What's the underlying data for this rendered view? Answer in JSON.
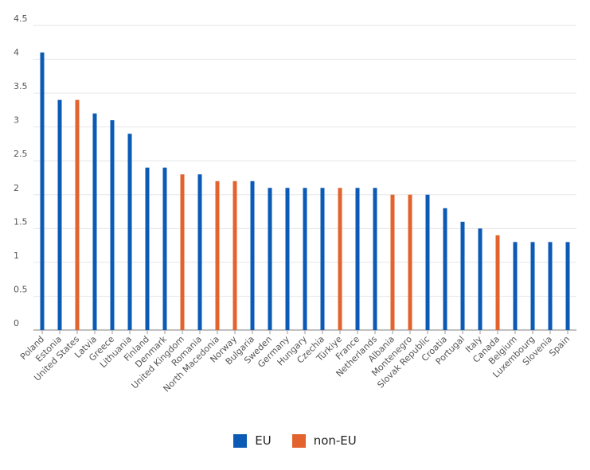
{
  "chart_data": {
    "type": "bar",
    "title": "",
    "xlabel": "",
    "ylabel": "",
    "ylim": [
      0,
      4.5
    ],
    "yticks": [
      "0",
      "0.5",
      "1",
      "1.5",
      "2",
      "2.5",
      "3",
      "3.5",
      "4",
      "4.5"
    ],
    "grid": true,
    "legend_position": "bottom",
    "colors": {
      "EU": "#0b5ab5",
      "non-EU": "#e2632e"
    },
    "series": [
      {
        "name": "EU"
      },
      {
        "name": "non-EU"
      }
    ],
    "categories": [
      "Poland",
      "Estonia",
      "United States",
      "Latvia",
      "Greece",
      "Lithuania",
      "Finland",
      "Denmark",
      "United Kingdom",
      "Romania",
      "North Macedonia",
      "Norway",
      "Bulgaria",
      "Sweden",
      "Germany",
      "Hungary",
      "Czechia",
      "Türkiye",
      "France",
      "Netherlands",
      "Albania",
      "Montenegro",
      "Slovak Republic",
      "Croatia",
      "Portugal",
      "Italy",
      "Canada",
      "Belgium",
      "Luxembourg",
      "Slovenia",
      "Spain"
    ],
    "values": [
      4.1,
      3.4,
      3.4,
      3.2,
      3.1,
      2.9,
      2.4,
      2.4,
      2.3,
      2.3,
      2.2,
      2.2,
      2.2,
      2.1,
      2.1,
      2.1,
      2.1,
      2.1,
      2.1,
      2.1,
      2.0,
      2.0,
      2.0,
      1.8,
      1.6,
      1.5,
      1.4,
      1.3,
      1.3,
      1.3,
      1.3
    ],
    "groups": [
      "EU",
      "EU",
      "non-EU",
      "EU",
      "EU",
      "EU",
      "EU",
      "EU",
      "non-EU",
      "EU",
      "non-EU",
      "non-EU",
      "EU",
      "EU",
      "EU",
      "EU",
      "EU",
      "non-EU",
      "EU",
      "EU",
      "non-EU",
      "non-EU",
      "EU",
      "EU",
      "EU",
      "EU",
      "non-EU",
      "EU",
      "EU",
      "EU",
      "EU"
    ]
  },
  "legend": [
    {
      "label": "EU",
      "color": "#0b5ab5"
    },
    {
      "label": "non-EU",
      "color": "#e2632e"
    }
  ]
}
